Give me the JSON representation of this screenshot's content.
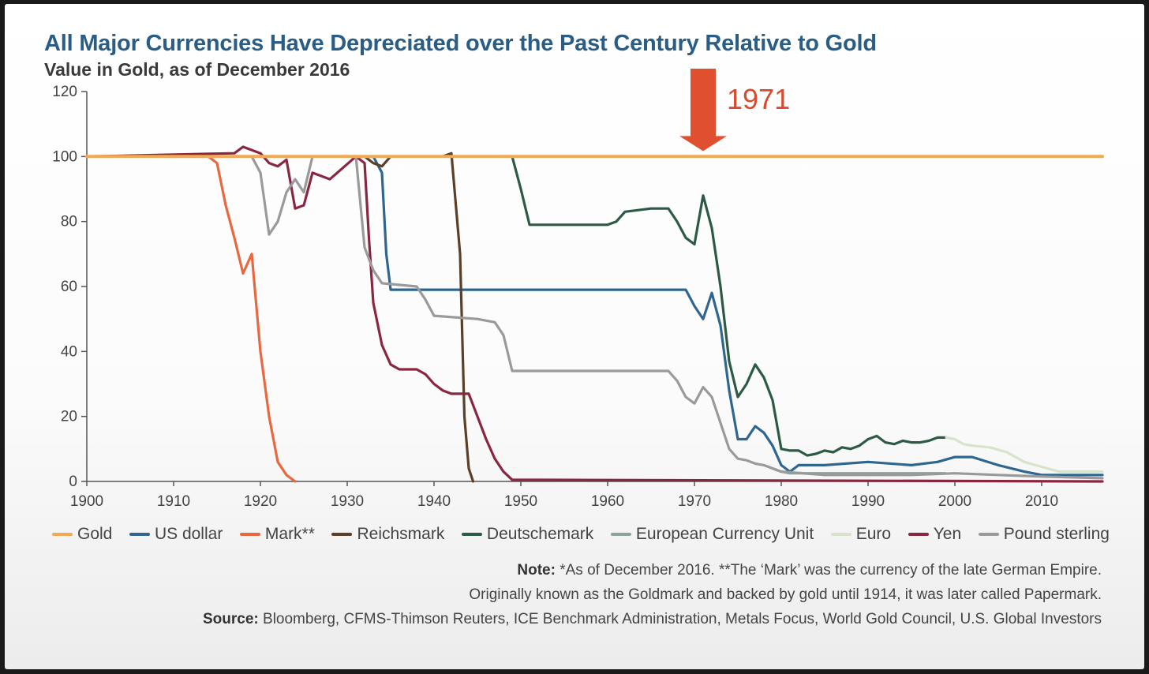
{
  "chart_data": {
    "type": "line",
    "title": "All Major Currencies Have Depreciated over the Past Century Relative to Gold",
    "subtitle": "Value in Gold, as of December 2016",
    "xlabel": "",
    "ylabel": "",
    "xlim": [
      1900,
      2017
    ],
    "ylim": [
      0,
      120
    ],
    "x_ticks": [
      1900,
      1910,
      1920,
      1930,
      1940,
      1950,
      1960,
      1970,
      1980,
      1990,
      2000,
      2010
    ],
    "y_ticks": [
      0,
      20,
      40,
      60,
      80,
      100,
      120
    ],
    "grid": false,
    "legend_position": "bottom",
    "annotation": {
      "label": "1971",
      "x": 1971,
      "color": "#e0502f"
    },
    "series": [
      {
        "name": "Gold",
        "color": "#f2a950",
        "x": [
          1900,
          2017
        ],
        "y": [
          100,
          100
        ]
      },
      {
        "name": "US dollar",
        "color": "#2f6690",
        "x": [
          1900,
          1933,
          1934,
          1934.5,
          1935,
          1969,
          1970,
          1971,
          1972,
          1973,
          1974,
          1975,
          1976,
          1977,
          1978,
          1979,
          1980,
          1981,
          1982,
          1985,
          1990,
          1995,
          1998,
          2000,
          2002,
          2005,
          2008,
          2010,
          2012,
          2017
        ],
        "y": [
          100,
          100,
          95,
          70,
          59,
          59,
          54,
          50,
          58,
          48,
          28,
          13,
          13,
          17,
          15,
          11,
          5,
          3,
          5,
          5,
          6,
          5,
          6,
          7.5,
          7.5,
          5,
          3,
          2,
          2,
          2
        ]
      },
      {
        "name": "Mark**",
        "color": "#e8683f",
        "x": [
          1900,
          1914,
          1915,
          1916,
          1917,
          1918,
          1919,
          1920,
          1921,
          1922,
          1923,
          1924
        ],
        "y": [
          100,
          100,
          98,
          85,
          75,
          64,
          70,
          40,
          20,
          6,
          2,
          0
        ]
      },
      {
        "name": "Reichsmark",
        "color": "#5b3f28",
        "x": [
          1924,
          1932,
          1933,
          1934,
          1935,
          1941,
          1942,
          1943,
          1943.5,
          1944,
          1944.5
        ],
        "y": [
          100,
          100,
          98,
          97,
          100,
          100,
          101,
          70,
          20,
          4,
          0
        ]
      },
      {
        "name": "Deutschemark",
        "color": "#2d5a45",
        "x": [
          1949,
          1950,
          1951,
          1960,
          1961,
          1962,
          1965,
          1967,
          1968,
          1969,
          1970,
          1971,
          1972,
          1973,
          1974,
          1975,
          1976,
          1977,
          1978,
          1979,
          1980,
          1981,
          1982,
          1983,
          1984,
          1985,
          1986,
          1987,
          1988,
          1989,
          1990,
          1991,
          1992,
          1993,
          1994,
          1995,
          1996,
          1997,
          1998,
          1999
        ],
        "y": [
          100,
          90,
          79,
          79,
          80,
          83,
          84,
          84,
          80,
          75,
          73,
          88,
          78,
          60,
          37,
          26,
          30,
          36,
          32,
          25,
          10,
          9.5,
          9.5,
          8,
          8.5,
          9.5,
          9,
          10.5,
          10,
          11,
          13,
          14,
          12,
          11.5,
          12.5,
          12,
          12,
          12.5,
          13.5,
          13.5
        ]
      },
      {
        "name": "European Currency Unit",
        "color": "#8ba398",
        "x": [
          1979,
          1980,
          1981,
          1985,
          1990,
          1995,
          1998.9
        ],
        "y": [
          4,
          3,
          2.5,
          2.5,
          2.5,
          2.5,
          2.5
        ]
      },
      {
        "name": "Euro",
        "color": "#d8e3cc",
        "x": [
          1999,
          2000,
          2001,
          2002,
          2004,
          2006,
          2008,
          2010,
          2012,
          2014,
          2017
        ],
        "y": [
          13.5,
          13,
          11.5,
          11,
          10.5,
          9,
          6,
          4.5,
          3,
          3,
          3
        ]
      },
      {
        "name": "Yen",
        "color": "#8a2740",
        "x": [
          1900,
          1917,
          1918,
          1920,
          1921,
          1922,
          1923,
          1924,
          1925,
          1926,
          1928,
          1931,
          1932,
          1932.5,
          1933,
          1934,
          1935,
          1936,
          1938,
          1939,
          1940,
          1941,
          1942,
          1944,
          1945,
          1946,
          1947,
          1948,
          1949,
          2017
        ],
        "y": [
          100,
          101,
          103,
          101,
          98,
          97,
          99,
          84,
          85,
          95,
          93,
          100,
          98,
          75,
          55,
          42,
          36,
          34.5,
          34.5,
          33,
          30,
          28,
          27,
          27,
          20,
          13,
          7,
          3,
          0.5,
          0
        ]
      },
      {
        "name": "Pound sterling",
        "color": "#9a9a9a",
        "x": [
          1900,
          1919,
          1920,
          1921,
          1922,
          1923,
          1924,
          1925,
          1926,
          1931,
          1932,
          1933,
          1934,
          1938,
          1939,
          1940,
          1945,
          1947,
          1948,
          1949,
          1950,
          1967,
          1968,
          1969,
          1970,
          1971,
          1972,
          1973,
          1974,
          1975,
          1976,
          1977,
          1978,
          1979,
          1980,
          1985,
          1990,
          1995,
          2000,
          2005,
          2010,
          2017
        ],
        "y": [
          100,
          100,
          95,
          76,
          80,
          89,
          93,
          89,
          100,
          100,
          72,
          65,
          61,
          60,
          56,
          51,
          50,
          49,
          45,
          34,
          34,
          34,
          31,
          26,
          24,
          29,
          26,
          18,
          10,
          7,
          6.5,
          5.5,
          5,
          4,
          3,
          2,
          2,
          2,
          2.5,
          2,
          1.5,
          1
        ]
      }
    ]
  },
  "legend": [
    {
      "label": "Gold",
      "color": "#f2a950"
    },
    {
      "label": "US dollar",
      "color": "#2f6690"
    },
    {
      "label": "Mark**",
      "color": "#e8683f"
    },
    {
      "label": "Reichsmark",
      "color": "#5b3f28"
    },
    {
      "label": "Deutschemark",
      "color": "#2d5a45"
    },
    {
      "label": "European Currency Unit",
      "color": "#8ba398"
    },
    {
      "label": "Euro",
      "color": "#d8e3cc"
    },
    {
      "label": "Yen",
      "color": "#8a2740"
    },
    {
      "label": "Pound sterling",
      "color": "#9a9a9a"
    }
  ],
  "notes": {
    "note_label": "Note:",
    "note_line1": "*As of December 2016. **The ‘Mark’ was the currency of the late German Empire.",
    "note_line2": "Originally known as the Goldmark and backed by gold until 1914, it was later called Papermark.",
    "source_label": "Source:",
    "source_text": "Bloomberg, CFMS-Thimson Reuters, ICE Benchmark Administration, Metals Focus, World Gold Council, U.S. Global Investors"
  }
}
